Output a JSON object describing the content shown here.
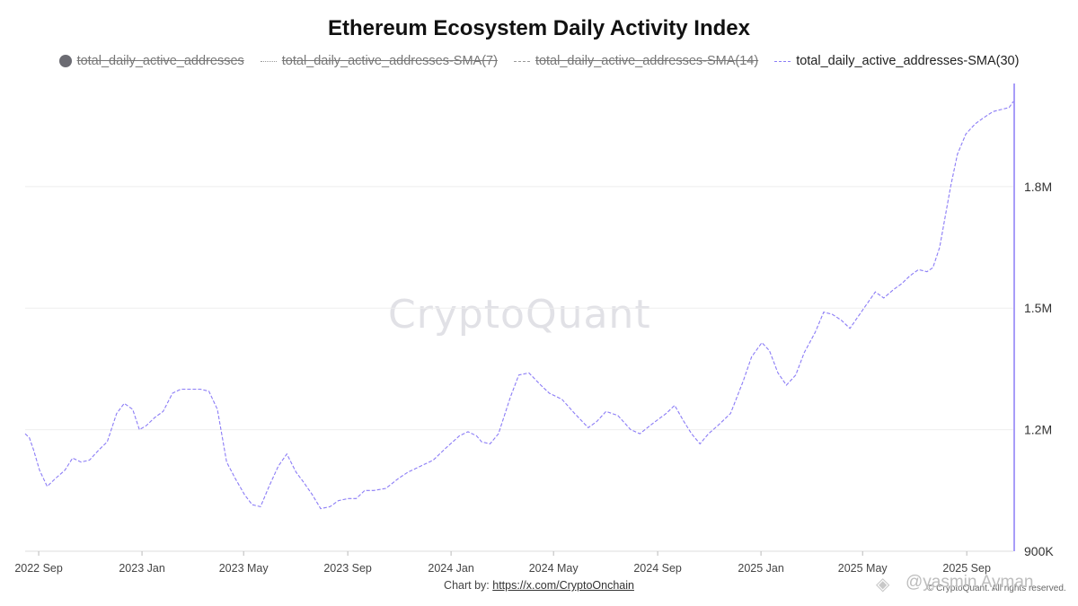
{
  "title": "Ethereum Ecosystem Daily Activity Index",
  "legend": [
    {
      "label": "total_daily_active_addresses",
      "style": "dot",
      "active": false
    },
    {
      "label": "total_daily_active_addresses-SMA(7)",
      "style": "dotted",
      "active": false
    },
    {
      "label": "total_daily_active_addresses-SMA(14)",
      "style": "dashed",
      "active": false
    },
    {
      "label": "total_daily_active_addresses-SMA(30)",
      "style": "dashed",
      "active": true
    }
  ],
  "watermark": "CryptoQuant",
  "credit": {
    "prefix": "Chart by:",
    "link": "https://x.com/CryptoOnchain"
  },
  "copyright": "© CryptoQuant. All rights reserved.",
  "signature": "@yasmin Ayman",
  "colors": {
    "series": "#8b7cf6",
    "grid": "#eeeeee",
    "axis": "#dddddd",
    "right_axis": "#8b7cf6"
  },
  "chart_data": {
    "type": "line",
    "title": "Ethereum Ecosystem Daily Activity Index",
    "xlabel": "",
    "ylabel": "",
    "y_axis_side": "right",
    "ylim": [
      900000,
      2050000
    ],
    "y_ticks": [
      {
        "value": 900000,
        "label": "900K"
      },
      {
        "value": 1200000,
        "label": "1.2M"
      },
      {
        "value": 1500000,
        "label": "1.5M"
      },
      {
        "value": 1800000,
        "label": "1.8M"
      }
    ],
    "x_range": [
      "2022-08-15",
      "2025-10-25"
    ],
    "x_ticks": [
      {
        "date": "2022-08-31",
        "label": "2022 Sep"
      },
      {
        "date": "2022-12-31",
        "label": "2023 Jan"
      },
      {
        "date": "2023-04-30",
        "label": "2023 May"
      },
      {
        "date": "2023-08-31",
        "label": "2023 Sep"
      },
      {
        "date": "2023-12-31",
        "label": "2024 Jan"
      },
      {
        "date": "2024-04-30",
        "label": "2024 May"
      },
      {
        "date": "2024-08-31",
        "label": "2024 Sep"
      },
      {
        "date": "2024-12-31",
        "label": "2025 Jan"
      },
      {
        "date": "2025-04-30",
        "label": "2025 May"
      },
      {
        "date": "2025-08-31",
        "label": "2025 Sep"
      }
    ],
    "grid": true,
    "legend_position": "top",
    "series": [
      {
        "name": "total_daily_active_addresses-SMA(30)",
        "style": "dashed",
        "points": [
          [
            "2022-08-15",
            1190000
          ],
          [
            "2022-08-20",
            1180000
          ],
          [
            "2022-08-25",
            1150000
          ],
          [
            "2022-09-01",
            1100000
          ],
          [
            "2022-09-10",
            1060000
          ],
          [
            "2022-09-20",
            1080000
          ],
          [
            "2022-10-01",
            1100000
          ],
          [
            "2022-10-10",
            1130000
          ],
          [
            "2022-10-20",
            1120000
          ],
          [
            "2022-10-30",
            1125000
          ],
          [
            "2022-11-10",
            1150000
          ],
          [
            "2022-11-20",
            1170000
          ],
          [
            "2022-12-01",
            1240000
          ],
          [
            "2022-12-10",
            1265000
          ],
          [
            "2022-12-20",
            1250000
          ],
          [
            "2022-12-28",
            1200000
          ],
          [
            "2023-01-05",
            1210000
          ],
          [
            "2023-01-15",
            1230000
          ],
          [
            "2023-01-25",
            1245000
          ],
          [
            "2023-02-05",
            1290000
          ],
          [
            "2023-02-15",
            1300000
          ],
          [
            "2023-02-25",
            1300000
          ],
          [
            "2023-03-10",
            1300000
          ],
          [
            "2023-03-20",
            1295000
          ],
          [
            "2023-03-30",
            1250000
          ],
          [
            "2023-04-10",
            1120000
          ],
          [
            "2023-04-20",
            1080000
          ],
          [
            "2023-05-01",
            1040000
          ],
          [
            "2023-05-10",
            1015000
          ],
          [
            "2023-05-20",
            1010000
          ],
          [
            "2023-05-30",
            1060000
          ],
          [
            "2023-06-10",
            1110000
          ],
          [
            "2023-06-20",
            1140000
          ],
          [
            "2023-07-01",
            1095000
          ],
          [
            "2023-07-10",
            1070000
          ],
          [
            "2023-07-20",
            1040000
          ],
          [
            "2023-07-30",
            1005000
          ],
          [
            "2023-08-10",
            1010000
          ],
          [
            "2023-08-20",
            1025000
          ],
          [
            "2023-09-01",
            1030000
          ],
          [
            "2023-09-10",
            1030000
          ],
          [
            "2023-09-20",
            1050000
          ],
          [
            "2023-10-01",
            1050000
          ],
          [
            "2023-10-15",
            1055000
          ],
          [
            "2023-10-30",
            1080000
          ],
          [
            "2023-11-10",
            1095000
          ],
          [
            "2023-11-25",
            1110000
          ],
          [
            "2023-12-10",
            1125000
          ],
          [
            "2023-12-25",
            1155000
          ],
          [
            "2024-01-10",
            1185000
          ],
          [
            "2024-01-20",
            1195000
          ],
          [
            "2024-01-30",
            1185000
          ],
          [
            "2024-02-05",
            1170000
          ],
          [
            "2024-02-15",
            1165000
          ],
          [
            "2024-02-25",
            1190000
          ],
          [
            "2024-03-10",
            1280000
          ],
          [
            "2024-03-20",
            1335000
          ],
          [
            "2024-04-01",
            1340000
          ],
          [
            "2024-04-15",
            1310000
          ],
          [
            "2024-04-25",
            1290000
          ],
          [
            "2024-05-10",
            1275000
          ],
          [
            "2024-05-25",
            1240000
          ],
          [
            "2024-06-10",
            1205000
          ],
          [
            "2024-06-20",
            1220000
          ],
          [
            "2024-07-01",
            1245000
          ],
          [
            "2024-07-15",
            1235000
          ],
          [
            "2024-07-30",
            1200000
          ],
          [
            "2024-08-10",
            1190000
          ],
          [
            "2024-08-25",
            1215000
          ],
          [
            "2024-09-10",
            1240000
          ],
          [
            "2024-09-20",
            1260000
          ],
          [
            "2024-10-01",
            1220000
          ],
          [
            "2024-10-10",
            1190000
          ],
          [
            "2024-10-20",
            1165000
          ],
          [
            "2024-10-30",
            1190000
          ],
          [
            "2024-11-10",
            1210000
          ],
          [
            "2024-11-25",
            1240000
          ],
          [
            "2024-12-10",
            1320000
          ],
          [
            "2024-12-20",
            1380000
          ],
          [
            "2025-01-01",
            1415000
          ],
          [
            "2025-01-10",
            1395000
          ],
          [
            "2025-01-20",
            1340000
          ],
          [
            "2025-01-30",
            1310000
          ],
          [
            "2025-02-10",
            1335000
          ],
          [
            "2025-02-20",
            1390000
          ],
          [
            "2025-03-05",
            1440000
          ],
          [
            "2025-03-15",
            1490000
          ],
          [
            "2025-03-25",
            1485000
          ],
          [
            "2025-04-05",
            1470000
          ],
          [
            "2025-04-15",
            1450000
          ],
          [
            "2025-04-25",
            1480000
          ],
          [
            "2025-05-05",
            1510000
          ],
          [
            "2025-05-15",
            1540000
          ],
          [
            "2025-05-25",
            1525000
          ],
          [
            "2025-06-05",
            1545000
          ],
          [
            "2025-06-15",
            1560000
          ],
          [
            "2025-06-25",
            1580000
          ],
          [
            "2025-07-05",
            1595000
          ],
          [
            "2025-07-15",
            1590000
          ],
          [
            "2025-07-22",
            1600000
          ],
          [
            "2025-07-30",
            1650000
          ],
          [
            "2025-08-05",
            1720000
          ],
          [
            "2025-08-12",
            1800000
          ],
          [
            "2025-08-20",
            1880000
          ],
          [
            "2025-08-30",
            1930000
          ],
          [
            "2025-09-10",
            1955000
          ],
          [
            "2025-09-20",
            1970000
          ],
          [
            "2025-10-01",
            1985000
          ],
          [
            "2025-10-10",
            1990000
          ],
          [
            "2025-10-20",
            1995000
          ],
          [
            "2025-10-25",
            2010000
          ]
        ]
      }
    ]
  }
}
